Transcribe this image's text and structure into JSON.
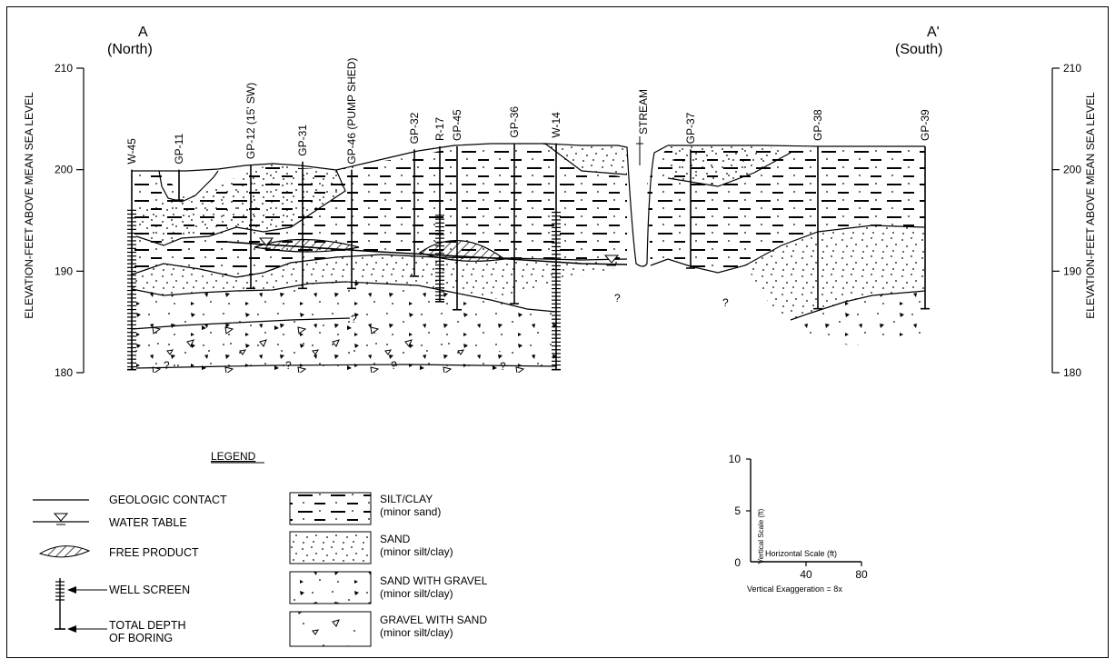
{
  "section": {
    "left_end": {
      "letter": "A",
      "direction": "(North)"
    },
    "right_end": {
      "letter": "A'",
      "direction": "(South)"
    }
  },
  "left_axis": {
    "label": "ELEVATION-FEET ABOVE MEAN SEA LEVEL",
    "ticks": [
      "210",
      "200",
      "190",
      "180"
    ]
  },
  "right_axis": {
    "label": "ELEVATION-FEET ABOVE MEAN SEA LEVEL",
    "ticks": [
      "210",
      "200",
      "190",
      "180"
    ]
  },
  "borings": [
    {
      "id": "W-45",
      "label": "W-45",
      "top_ft": 200.0,
      "bottom_ft": 180.3,
      "screen_top_ft": 196.0,
      "screened": true
    },
    {
      "id": "GP-11",
      "label": "GP-11",
      "top_ft": 200.0,
      "bottom_ft": 197.0,
      "screened": false
    },
    {
      "id": "GP-12",
      "label": "GP-12 (15' SW)",
      "top_ft": 200.5,
      "bottom_ft": 188.3,
      "screened": false
    },
    {
      "id": "GP-31",
      "label": "GP-31",
      "top_ft": 200.8,
      "bottom_ft": 188.3,
      "screened": false
    },
    {
      "id": "GP-46",
      "label": "GP-46 (PUMP SHED)",
      "top_ft": 200.0,
      "bottom_ft": 188.3,
      "screened": false
    },
    {
      "id": "GP-32",
      "label": "GP-32",
      "top_ft": 202.0,
      "bottom_ft": 189.5,
      "screened": false
    },
    {
      "id": "R-17",
      "label": "R-17",
      "top_ft": 202.3,
      "bottom_ft": 187.0,
      "screen_top_ft": 195.5,
      "screened": true
    },
    {
      "id": "GP-45",
      "label": "GP-45",
      "top_ft": 202.3,
      "bottom_ft": 186.2,
      "screened": false
    },
    {
      "id": "GP-36",
      "label": "GP-36",
      "top_ft": 202.6,
      "bottom_ft": 186.8,
      "screened": false
    },
    {
      "id": "W-14",
      "label": "W-14",
      "top_ft": 202.6,
      "bottom_ft": 180.3,
      "screen_top_ft": 195.8,
      "screened": true
    },
    {
      "id": "GP-37",
      "label": "GP-37",
      "top_ft": 202.0,
      "bottom_ft": 190.3,
      "screened": false
    },
    {
      "id": "GP-38",
      "label": "GP-38",
      "top_ft": 202.3,
      "bottom_ft": 186.3,
      "screened": false
    },
    {
      "id": "GP-39",
      "label": "GP-39",
      "top_ft": 202.3,
      "bottom_ft": 186.3,
      "screened": false
    }
  ],
  "stream_label": "STREAM",
  "unknown_marker": "?",
  "legend": {
    "title": "LEGEND",
    "symbols": [
      {
        "key": "contact",
        "label": "GEOLOGIC CONTACT"
      },
      {
        "key": "water",
        "label": "WATER TABLE"
      },
      {
        "key": "product",
        "label": "FREE PRODUCT"
      },
      {
        "key": "screen",
        "label": "WELL SCREEN"
      },
      {
        "key": "depth",
        "label": "TOTAL DEPTH",
        "label2": "OF BORING"
      }
    ],
    "materials": [
      {
        "key": "silt",
        "label": "SILT/CLAY",
        "note": "(minor sand)"
      },
      {
        "key": "sand",
        "label": "SAND",
        "note": "(minor silt/clay)"
      },
      {
        "key": "sandgravel",
        "label": "SAND WITH GRAVEL",
        "note": "(minor silt/clay)"
      },
      {
        "key": "gravelsand",
        "label": "GRAVEL WITH SAND",
        "note": "(minor silt/clay)"
      }
    ]
  },
  "scale": {
    "vertical_label": "Vertical Scale (ft)",
    "vertical_ticks": [
      "10",
      "5",
      "0"
    ],
    "horizontal_label": "Horizontal Scale (ft)",
    "horizontal_ticks": [
      "40",
      "80"
    ],
    "exaggeration": "Vertical Exaggeration = 8x"
  }
}
